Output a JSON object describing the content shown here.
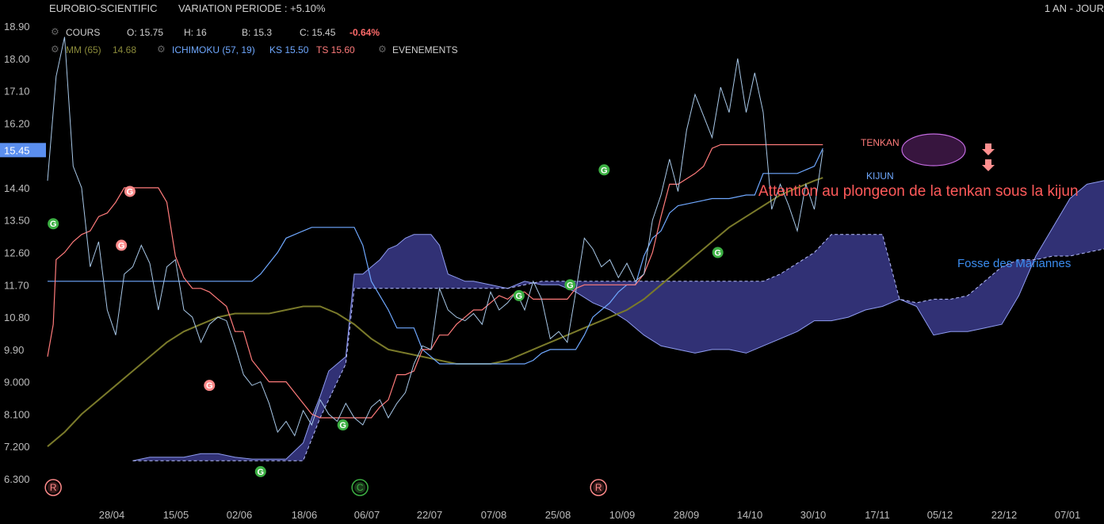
{
  "header": {
    "instrument": "EUROBIO-SCIENTIFIC",
    "variation": "VARIATION PERIODE : +5.10%",
    "period": "1 AN - JOUR",
    "cours_label": "COURS",
    "open": "O: 15.75",
    "high": "H: 16",
    "low": "B: 15.3",
    "close": "C: 15.45",
    "change": "-0.64%",
    "mm_label": "MM (65)",
    "mm_value": "14.68",
    "ichimoku_label": "ICHIMOKU (57, 19)",
    "ks_value": "KS 15.50",
    "ts_value": "TS 15.60",
    "events_label": "EVENEMENTS"
  },
  "colors": {
    "price": "#a8c8e8",
    "tenkan": "#ff7b7b",
    "kijun": "#6fa8ff",
    "mm": "#7a7a2a",
    "cloud": "#3a3a8a",
    "marker_green": "#3cb043",
    "marker_red": "#ff8a8a",
    "annotation_red": "#ff5a5a",
    "annotation_blue": "#3b8df0",
    "price_tag": "#5b8ff0"
  },
  "chart_data": {
    "type": "line",
    "y_ticks": [
      "18.90",
      "18.00",
      "17.10",
      "16.20",
      "15.45",
      "14.40",
      "13.50",
      "12.60",
      "11.70",
      "10.80",
      "9.90",
      "9.000",
      "8.100",
      "7.200",
      "6.300"
    ],
    "x_ticks": [
      "28/04",
      "15/05",
      "02/06",
      "18/06",
      "06/07",
      "22/07",
      "07/08",
      "25/08",
      "10/09",
      "28/09",
      "14/10",
      "30/10",
      "17/11",
      "05/12",
      "22/12",
      "07/01"
    ],
    "ylim": [
      5.9,
      19.2
    ],
    "last_price_label": "15.45",
    "price": [
      [
        0,
        14.6
      ],
      [
        3,
        17.5
      ],
      [
        6,
        18.6
      ],
      [
        9,
        15.0
      ],
      [
        12,
        14.4
      ],
      [
        15,
        12.2
      ],
      [
        18,
        12.9
      ],
      [
        21,
        11.0
      ],
      [
        24,
        10.3
      ],
      [
        27,
        12.0
      ],
      [
        30,
        12.2
      ],
      [
        33,
        12.8
      ],
      [
        36,
        12.3
      ],
      [
        39,
        11.0
      ],
      [
        42,
        12.2
      ],
      [
        45,
        12.4
      ],
      [
        48,
        11.0
      ],
      [
        51,
        10.8
      ],
      [
        54,
        10.1
      ],
      [
        57,
        10.6
      ],
      [
        60,
        10.8
      ],
      [
        63,
        10.7
      ],
      [
        66,
        10.0
      ],
      [
        69,
        9.2
      ],
      [
        72,
        8.9
      ],
      [
        75,
        9.0
      ],
      [
        78,
        8.4
      ],
      [
        81,
        7.6
      ],
      [
        84,
        7.9
      ],
      [
        87,
        7.5
      ],
      [
        90,
        8.2
      ],
      [
        93,
        7.8
      ],
      [
        96,
        8.5
      ],
      [
        99,
        8.1
      ],
      [
        102,
        7.9
      ],
      [
        105,
        8.4
      ],
      [
        108,
        8.0
      ],
      [
        111,
        7.8
      ],
      [
        114,
        8.3
      ],
      [
        117,
        8.5
      ],
      [
        120,
        8.0
      ],
      [
        123,
        8.4
      ],
      [
        126,
        8.7
      ],
      [
        129,
        9.5
      ],
      [
        132,
        10.0
      ],
      [
        135,
        9.9
      ],
      [
        138,
        11.6
      ],
      [
        141,
        11.0
      ],
      [
        144,
        10.8
      ],
      [
        147,
        10.7
      ],
      [
        150,
        10.9
      ],
      [
        153,
        10.6
      ],
      [
        156,
        11.5
      ],
      [
        159,
        11.0
      ],
      [
        162,
        11.2
      ],
      [
        165,
        11.5
      ],
      [
        168,
        11.0
      ],
      [
        171,
        11.8
      ],
      [
        174,
        11.3
      ],
      [
        177,
        10.2
      ],
      [
        180,
        10.4
      ],
      [
        183,
        10.1
      ],
      [
        186,
        11.5
      ],
      [
        189,
        13.0
      ],
      [
        192,
        12.7
      ],
      [
        195,
        12.2
      ],
      [
        198,
        12.4
      ],
      [
        201,
        11.9
      ],
      [
        204,
        12.3
      ],
      [
        207,
        11.8
      ],
      [
        210,
        12.0
      ],
      [
        213,
        13.5
      ],
      [
        216,
        14.2
      ],
      [
        219,
        15.2
      ],
      [
        222,
        14.3
      ],
      [
        225,
        16.0
      ],
      [
        228,
        17.0
      ],
      [
        231,
        16.4
      ],
      [
        234,
        15.8
      ],
      [
        237,
        17.2
      ],
      [
        240,
        16.5
      ],
      [
        243,
        18.0
      ],
      [
        246,
        16.5
      ],
      [
        249,
        17.6
      ],
      [
        252,
        16.5
      ],
      [
        255,
        13.8
      ],
      [
        258,
        14.5
      ],
      [
        261,
        13.9
      ],
      [
        264,
        13.2
      ],
      [
        267,
        14.5
      ],
      [
        270,
        13.8
      ],
      [
        273,
        15.45
      ]
    ],
    "tenkan": [
      [
        0,
        9.7
      ],
      [
        2,
        10.6
      ],
      [
        3,
        12.4
      ],
      [
        6,
        12.6
      ],
      [
        9,
        12.9
      ],
      [
        12,
        13.1
      ],
      [
        15,
        13.2
      ],
      [
        18,
        13.6
      ],
      [
        21,
        13.7
      ],
      [
        24,
        14.0
      ],
      [
        27,
        14.4
      ],
      [
        33,
        14.4
      ],
      [
        39,
        14.4
      ],
      [
        42,
        14.0
      ],
      [
        45,
        12.5
      ],
      [
        48,
        11.9
      ],
      [
        51,
        11.6
      ],
      [
        54,
        11.6
      ],
      [
        57,
        11.5
      ],
      [
        60,
        11.3
      ],
      [
        63,
        11.1
      ],
      [
        66,
        10.4
      ],
      [
        69,
        10.4
      ],
      [
        72,
        9.6
      ],
      [
        75,
        9.3
      ],
      [
        78,
        9.0
      ],
      [
        81,
        9.0
      ],
      [
        84,
        9.0
      ],
      [
        87,
        8.7
      ],
      [
        90,
        8.4
      ],
      [
        93,
        8.1
      ],
      [
        96,
        8.0
      ],
      [
        99,
        8.0
      ],
      [
        108,
        8.0
      ],
      [
        114,
        8.0
      ],
      [
        117,
        8.3
      ],
      [
        120,
        8.5
      ],
      [
        123,
        9.2
      ],
      [
        126,
        9.2
      ],
      [
        129,
        9.3
      ],
      [
        132,
        9.9
      ],
      [
        135,
        9.9
      ],
      [
        138,
        10.3
      ],
      [
        141,
        10.3
      ],
      [
        144,
        10.6
      ],
      [
        147,
        10.8
      ],
      [
        150,
        11.0
      ],
      [
        153,
        11.0
      ],
      [
        156,
        11.2
      ],
      [
        159,
        11.4
      ],
      [
        162,
        11.3
      ],
      [
        165,
        11.5
      ],
      [
        168,
        11.5
      ],
      [
        171,
        11.3
      ],
      [
        183,
        11.3
      ],
      [
        186,
        11.6
      ],
      [
        189,
        11.7
      ],
      [
        195,
        11.7
      ],
      [
        201,
        11.7
      ],
      [
        207,
        11.7
      ],
      [
        210,
        12.0
      ],
      [
        213,
        12.6
      ],
      [
        216,
        13.6
      ],
      [
        219,
        14.5
      ],
      [
        222,
        14.5
      ],
      [
        228,
        14.8
      ],
      [
        231,
        15.0
      ],
      [
        234,
        15.5
      ],
      [
        237,
        15.6
      ],
      [
        240,
        15.6
      ],
      [
        246,
        15.6
      ],
      [
        252,
        15.6
      ],
      [
        255,
        15.6
      ],
      [
        273,
        15.6
      ]
    ],
    "kijun": [
      [
        0,
        11.8
      ],
      [
        12,
        11.8
      ],
      [
        36,
        11.8
      ],
      [
        60,
        11.8
      ],
      [
        72,
        11.8
      ],
      [
        75,
        12.0
      ],
      [
        78,
        12.3
      ],
      [
        81,
        12.6
      ],
      [
        84,
        13.0
      ],
      [
        87,
        13.1
      ],
      [
        90,
        13.2
      ],
      [
        93,
        13.3
      ],
      [
        108,
        13.3
      ],
      [
        111,
        12.8
      ],
      [
        114,
        11.8
      ],
      [
        117,
        11.4
      ],
      [
        120,
        11.0
      ],
      [
        123,
        10.5
      ],
      [
        126,
        10.5
      ],
      [
        129,
        10.5
      ],
      [
        132,
        9.9
      ],
      [
        135,
        9.7
      ],
      [
        138,
        9.5
      ],
      [
        141,
        9.5
      ],
      [
        144,
        9.5
      ],
      [
        150,
        9.5
      ],
      [
        156,
        9.5
      ],
      [
        162,
        9.5
      ],
      [
        168,
        9.5
      ],
      [
        171,
        9.6
      ],
      [
        174,
        9.8
      ],
      [
        177,
        9.9
      ],
      [
        180,
        9.9
      ],
      [
        186,
        9.9
      ],
      [
        189,
        10.3
      ],
      [
        192,
        10.8
      ],
      [
        195,
        11.0
      ],
      [
        198,
        11.2
      ],
      [
        201,
        11.5
      ],
      [
        204,
        11.7
      ],
      [
        207,
        11.7
      ],
      [
        210,
        12.5
      ],
      [
        213,
        13.0
      ],
      [
        216,
        13.2
      ],
      [
        219,
        13.7
      ],
      [
        222,
        13.9
      ],
      [
        228,
        14.0
      ],
      [
        234,
        14.1
      ],
      [
        240,
        14.1
      ],
      [
        246,
        14.2
      ],
      [
        249,
        14.2
      ],
      [
        252,
        14.8
      ],
      [
        255,
        14.8
      ],
      [
        258,
        14.8
      ],
      [
        264,
        14.8
      ],
      [
        270,
        15.0
      ],
      [
        273,
        15.5
      ]
    ],
    "mm": [
      [
        0,
        7.2
      ],
      [
        6,
        7.6
      ],
      [
        12,
        8.1
      ],
      [
        18,
        8.5
      ],
      [
        24,
        8.9
      ],
      [
        30,
        9.3
      ],
      [
        36,
        9.7
      ],
      [
        42,
        10.1
      ],
      [
        48,
        10.4
      ],
      [
        54,
        10.6
      ],
      [
        60,
        10.8
      ],
      [
        66,
        10.9
      ],
      [
        72,
        10.9
      ],
      [
        78,
        10.9
      ],
      [
        84,
        11.0
      ],
      [
        90,
        11.1
      ],
      [
        96,
        11.1
      ],
      [
        102,
        10.9
      ],
      [
        108,
        10.6
      ],
      [
        114,
        10.2
      ],
      [
        120,
        9.9
      ],
      [
        126,
        9.8
      ],
      [
        132,
        9.7
      ],
      [
        138,
        9.6
      ],
      [
        144,
        9.5
      ],
      [
        150,
        9.5
      ],
      [
        156,
        9.5
      ],
      [
        162,
        9.6
      ],
      [
        168,
        9.8
      ],
      [
        174,
        10.0
      ],
      [
        180,
        10.2
      ],
      [
        186,
        10.4
      ],
      [
        192,
        10.6
      ],
      [
        198,
        10.8
      ],
      [
        204,
        11.0
      ],
      [
        210,
        11.3
      ],
      [
        216,
        11.7
      ],
      [
        222,
        12.1
      ],
      [
        228,
        12.5
      ],
      [
        234,
        12.9
      ],
      [
        240,
        13.3
      ],
      [
        246,
        13.6
      ],
      [
        252,
        13.9
      ],
      [
        258,
        14.2
      ],
      [
        264,
        14.4
      ],
      [
        270,
        14.6
      ],
      [
        273,
        14.68
      ]
    ],
    "ssa": [
      [
        30,
        6.8
      ],
      [
        36,
        6.9
      ],
      [
        42,
        6.9
      ],
      [
        48,
        6.9
      ],
      [
        54,
        7.0
      ],
      [
        60,
        7.0
      ],
      [
        66,
        6.9
      ],
      [
        72,
        6.85
      ],
      [
        78,
        6.85
      ],
      [
        84,
        6.85
      ],
      [
        90,
        7.3
      ],
      [
        93,
        8.0
      ],
      [
        96,
        8.6
      ],
      [
        99,
        9.3
      ],
      [
        102,
        9.5
      ],
      [
        105,
        9.7
      ],
      [
        108,
        12.0
      ],
      [
        111,
        12.0
      ],
      [
        114,
        12.2
      ],
      [
        117,
        12.4
      ],
      [
        120,
        12.7
      ],
      [
        123,
        12.8
      ],
      [
        126,
        13.0
      ],
      [
        129,
        13.1
      ],
      [
        132,
        13.1
      ],
      [
        135,
        13.1
      ],
      [
        138,
        12.8
      ],
      [
        141,
        12.0
      ],
      [
        144,
        11.9
      ],
      [
        147,
        11.8
      ],
      [
        150,
        11.8
      ],
      [
        156,
        11.7
      ],
      [
        162,
        11.6
      ],
      [
        168,
        11.8
      ],
      [
        174,
        11.7
      ],
      [
        180,
        11.7
      ],
      [
        186,
        11.5
      ],
      [
        192,
        11.2
      ],
      [
        198,
        11.0
      ],
      [
        204,
        10.7
      ],
      [
        210,
        10.3
      ],
      [
        216,
        10.0
      ],
      [
        222,
        9.9
      ],
      [
        228,
        9.8
      ],
      [
        234,
        9.9
      ],
      [
        240,
        9.9
      ],
      [
        246,
        9.8
      ],
      [
        252,
        10.0
      ],
      [
        258,
        10.2
      ],
      [
        264,
        10.4
      ],
      [
        270,
        10.7
      ],
      [
        276,
        10.7
      ],
      [
        282,
        10.8
      ],
      [
        288,
        11.0
      ],
      [
        294,
        11.1
      ],
      [
        300,
        11.3
      ],
      [
        306,
        11.1
      ],
      [
        312,
        10.3
      ],
      [
        318,
        10.4
      ],
      [
        324,
        10.4
      ],
      [
        330,
        10.5
      ],
      [
        336,
        10.6
      ],
      [
        342,
        11.4
      ],
      [
        348,
        12.5
      ],
      [
        354,
        13.3
      ],
      [
        360,
        14.1
      ],
      [
        366,
        14.5
      ],
      [
        372,
        14.6
      ]
    ],
    "ssb": [
      [
        30,
        6.8
      ],
      [
        36,
        6.8
      ],
      [
        48,
        6.8
      ],
      [
        60,
        6.8
      ],
      [
        72,
        6.8
      ],
      [
        78,
        6.8
      ],
      [
        84,
        6.8
      ],
      [
        90,
        6.8
      ],
      [
        96,
        8.0
      ],
      [
        102,
        9.0
      ],
      [
        105,
        9.5
      ],
      [
        108,
        11.6
      ],
      [
        120,
        11.6
      ],
      [
        132,
        11.6
      ],
      [
        144,
        11.6
      ],
      [
        156,
        11.6
      ],
      [
        162,
        11.6
      ],
      [
        168,
        11.7
      ],
      [
        174,
        11.8
      ],
      [
        186,
        11.8
      ],
      [
        198,
        11.8
      ],
      [
        210,
        11.8
      ],
      [
        222,
        11.8
      ],
      [
        234,
        11.8
      ],
      [
        246,
        11.8
      ],
      [
        252,
        11.8
      ],
      [
        258,
        12.0
      ],
      [
        264,
        12.3
      ],
      [
        270,
        12.6
      ],
      [
        276,
        13.1
      ],
      [
        282,
        13.1
      ],
      [
        288,
        13.1
      ],
      [
        294,
        13.1
      ],
      [
        300,
        11.3
      ],
      [
        306,
        11.2
      ],
      [
        312,
        11.3
      ],
      [
        318,
        11.3
      ],
      [
        324,
        11.4
      ],
      [
        330,
        11.8
      ],
      [
        336,
        12.2
      ],
      [
        342,
        12.4
      ],
      [
        348,
        12.4
      ],
      [
        354,
        12.5
      ],
      [
        360,
        12.5
      ],
      [
        366,
        12.6
      ],
      [
        372,
        12.7
      ]
    ],
    "markers": [
      {
        "x": 2,
        "y": 13.4,
        "letter": "G",
        "color": "green"
      },
      {
        "x": 29,
        "y": 14.3,
        "letter": "G",
        "color": "red"
      },
      {
        "x": 26,
        "y": 12.8,
        "letter": "G",
        "color": "red"
      },
      {
        "x": 57,
        "y": 8.9,
        "letter": "G",
        "color": "red"
      },
      {
        "x": 75,
        "y": 6.5,
        "letter": "G",
        "color": "green"
      },
      {
        "x": 104,
        "y": 7.8,
        "letter": "G",
        "color": "green"
      },
      {
        "x": 166,
        "y": 11.4,
        "letter": "G",
        "color": "green"
      },
      {
        "x": 184,
        "y": 11.7,
        "letter": "G",
        "color": "green"
      },
      {
        "x": 196,
        "y": 14.9,
        "letter": "G",
        "color": "green"
      },
      {
        "x": 236,
        "y": 12.6,
        "letter": "G",
        "color": "green"
      },
      {
        "x": 2,
        "y": 6.1,
        "letter": "R",
        "color": "red"
      },
      {
        "x": 110,
        "y": 6.1,
        "letter": "C",
        "color": "green"
      },
      {
        "x": 194,
        "y": 6.1,
        "letter": "R",
        "color": "red"
      }
    ],
    "annotations": {
      "tenkan_label": "TENKAN",
      "kijun_label": "KIJUN",
      "warning": "Attention au plongeon de la tenkan sous la kijun",
      "cloud_note": "Fosse des Mariannes"
    }
  }
}
